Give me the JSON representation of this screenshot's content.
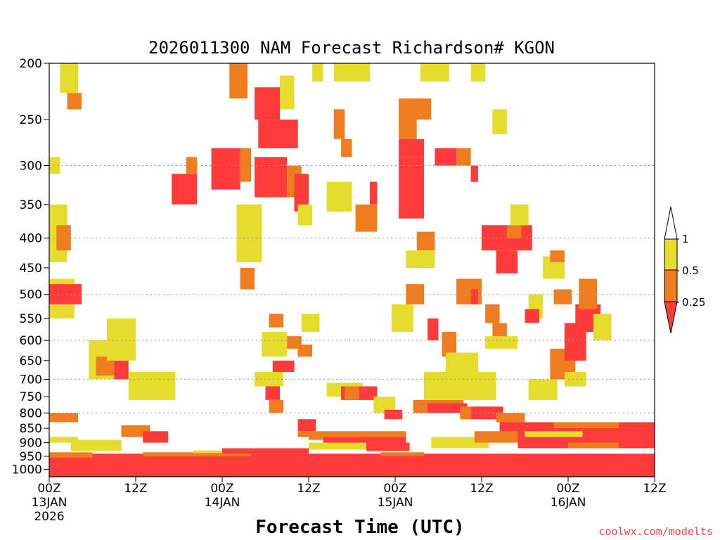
{
  "chart_data": {
    "type": "heatmap",
    "title": "2026011300 NAM Forecast Richardson# KGON",
    "xlabel": "Forecast Time (UTC)",
    "ylabel": "",
    "credit": "coolwx.com/modelts",
    "x_ticks": [
      {
        "hour": 0,
        "label": "00Z",
        "date": "13JAN",
        "year": "2026"
      },
      {
        "hour": 12,
        "label": "12Z",
        "date": "",
        "year": ""
      },
      {
        "hour": 24,
        "label": "00Z",
        "date": "14JAN",
        "year": ""
      },
      {
        "hour": 36,
        "label": "12Z",
        "date": "",
        "year": ""
      },
      {
        "hour": 48,
        "label": "00Z",
        "date": "15JAN",
        "year": ""
      },
      {
        "hour": 60,
        "label": "12Z",
        "date": "",
        "year": ""
      },
      {
        "hour": 72,
        "label": "00Z",
        "date": "16JAN",
        "year": ""
      },
      {
        "hour": 84,
        "label": "12Z",
        "date": "",
        "year": ""
      }
    ],
    "xlim": [
      0,
      84
    ],
    "y_ticks": [
      200,
      250,
      300,
      350,
      400,
      450,
      500,
      550,
      600,
      650,
      700,
      750,
      800,
      850,
      900,
      950,
      1000
    ],
    "ylim": [
      1030,
      200
    ],
    "y_scale": "log",
    "grid_levels": [
      300,
      400,
      500,
      600,
      700,
      800
    ],
    "surface": {
      "pressure_start": 1027,
      "pressure_end": 1030,
      "color": "#8b4513"
    },
    "legend": {
      "placement": "right",
      "entries": [
        {
          "label": "0.25",
          "color": "#ff3a3a",
          "range": "< 0.25"
        },
        {
          "label": "0.5",
          "color": "#f07c20",
          "range": "0.25 - 0.5"
        },
        {
          "label": "1",
          "color": "#e6dc2d",
          "range": "0.5 - 1"
        }
      ],
      "extension_low_color": "#ff3a3a",
      "extension_high_color": "#ffffff"
    },
    "colors": {
      "low": "#ff3a3a",
      "mid": "#f07c20",
      "high": "#e6dc2d"
    },
    "regions": [
      {
        "class": "high",
        "h0": 1.5,
        "h1": 4.0,
        "p0": 200,
        "p1": 225
      },
      {
        "class": "mid",
        "h0": 2.5,
        "h1": 4.5,
        "p0": 225,
        "p1": 240
      },
      {
        "class": "high",
        "h0": 0.0,
        "h1": 1.5,
        "p0": 290,
        "p1": 310
      },
      {
        "class": "high",
        "h0": 0.0,
        "h1": 2.5,
        "p0": 350,
        "p1": 440
      },
      {
        "class": "mid",
        "h0": 1.0,
        "h1": 3.0,
        "p0": 380,
        "p1": 420
      },
      {
        "class": "high",
        "h0": 0.0,
        "h1": 3.5,
        "p0": 470,
        "p1": 550
      },
      {
        "class": "low",
        "h0": 0.0,
        "h1": 4.5,
        "p0": 480,
        "p1": 520
      },
      {
        "class": "high",
        "h0": 5.5,
        "h1": 9.0,
        "p0": 600,
        "p1": 700
      },
      {
        "class": "mid",
        "h0": 6.5,
        "h1": 9.0,
        "p0": 640,
        "p1": 690
      },
      {
        "class": "low",
        "h0": 9.0,
        "h1": 11.0,
        "p0": 650,
        "p1": 700
      },
      {
        "class": "high",
        "h0": 8.0,
        "h1": 12.0,
        "p0": 550,
        "p1": 650
      },
      {
        "class": "high",
        "h0": 11.0,
        "h1": 17.5,
        "p0": 680,
        "p1": 760
      },
      {
        "class": "mid",
        "h0": 10.0,
        "h1": 14.0,
        "p0": 840,
        "p1": 880
      },
      {
        "class": "low",
        "h0": 13.0,
        "h1": 16.5,
        "p0": 860,
        "p1": 900
      },
      {
        "class": "high",
        "h0": 3.0,
        "h1": 10.0,
        "p0": 890,
        "p1": 930
      },
      {
        "class": "mid",
        "h0": 0.0,
        "h1": 4.0,
        "p0": 800,
        "p1": 830
      },
      {
        "class": "mid",
        "h0": 25.0,
        "h1": 27.5,
        "p0": 200,
        "p1": 230
      },
      {
        "class": "low",
        "h0": 28.5,
        "h1": 32.0,
        "p0": 220,
        "p1": 250
      },
      {
        "class": "low",
        "h0": 29.0,
        "h1": 34.5,
        "p0": 250,
        "p1": 280
      },
      {
        "class": "high",
        "h0": 32.0,
        "h1": 34.0,
        "p0": 210,
        "p1": 240
      },
      {
        "class": "low",
        "h0": 22.5,
        "h1": 26.5,
        "p0": 280,
        "p1": 330
      },
      {
        "class": "mid",
        "h0": 26.5,
        "h1": 28.0,
        "p0": 280,
        "p1": 320
      },
      {
        "class": "low",
        "h0": 28.5,
        "h1": 33.0,
        "p0": 290,
        "p1": 340
      },
      {
        "class": "mid",
        "h0": 33.0,
        "h1": 35.0,
        "p0": 300,
        "p1": 340
      },
      {
        "class": "low",
        "h0": 34.0,
        "h1": 36.0,
        "p0": 310,
        "p1": 360
      },
      {
        "class": "low",
        "h0": 17.0,
        "h1": 20.5,
        "p0": 310,
        "p1": 350
      },
      {
        "class": "mid",
        "h0": 19.0,
        "h1": 20.5,
        "p0": 290,
        "p1": 310
      },
      {
        "class": "high",
        "h0": 26.0,
        "h1": 29.5,
        "p0": 350,
        "p1": 440
      },
      {
        "class": "mid",
        "h0": 26.5,
        "h1": 28.5,
        "p0": 450,
        "p1": 490
      },
      {
        "class": "high",
        "h0": 34.5,
        "h1": 36.5,
        "p0": 350,
        "p1": 380
      },
      {
        "class": "high",
        "h0": 38.5,
        "h1": 42.0,
        "p0": 320,
        "p1": 360
      },
      {
        "class": "mid",
        "h0": 42.5,
        "h1": 45.5,
        "p0": 350,
        "p1": 390
      },
      {
        "class": "low",
        "h0": 44.5,
        "h1": 45.5,
        "p0": 320,
        "p1": 350
      },
      {
        "class": "high",
        "h0": 39.5,
        "h1": 44.5,
        "p0": 200,
        "p1": 215
      },
      {
        "class": "high",
        "h0": 36.5,
        "h1": 38.0,
        "p0": 200,
        "p1": 215
      },
      {
        "class": "mid",
        "h0": 39.5,
        "h1": 41.0,
        "p0": 240,
        "p1": 270
      },
      {
        "class": "mid",
        "h0": 40.5,
        "h1": 42.0,
        "p0": 270,
        "p1": 290
      },
      {
        "class": "low",
        "h0": 48.5,
        "h1": 52.0,
        "p0": 270,
        "p1": 290
      },
      {
        "class": "low",
        "h0": 48.5,
        "h1": 52.0,
        "p0": 290,
        "p1": 370
      },
      {
        "class": "mid",
        "h0": 48.5,
        "h1": 51.0,
        "p0": 230,
        "p1": 270
      },
      {
        "class": "mid",
        "h0": 50.5,
        "h1": 53.0,
        "p0": 230,
        "p1": 250
      },
      {
        "class": "high",
        "h0": 51.5,
        "h1": 55.5,
        "p0": 200,
        "p1": 215
      },
      {
        "class": "low",
        "h0": 53.5,
        "h1": 56.5,
        "p0": 280,
        "p1": 300
      },
      {
        "class": "mid",
        "h0": 56.5,
        "h1": 58.5,
        "p0": 280,
        "p1": 300
      },
      {
        "class": "low",
        "h0": 58.5,
        "h1": 59.5,
        "p0": 300,
        "p1": 320
      },
      {
        "class": "high",
        "h0": 61.5,
        "h1": 63.5,
        "p0": 240,
        "p1": 265
      },
      {
        "class": "high",
        "h0": 58.5,
        "h1": 60.5,
        "p0": 200,
        "p1": 215
      },
      {
        "class": "mid",
        "h0": 51.0,
        "h1": 53.5,
        "p0": 390,
        "p1": 420
      },
      {
        "class": "high",
        "h0": 49.5,
        "h1": 53.5,
        "p0": 420,
        "p1": 450
      },
      {
        "class": "mid",
        "h0": 49.5,
        "h1": 52.0,
        "p0": 480,
        "p1": 520
      },
      {
        "class": "high",
        "h0": 47.5,
        "h1": 50.5,
        "p0": 520,
        "p1": 580
      },
      {
        "class": "low",
        "h0": 52.5,
        "h1": 54.0,
        "p0": 550,
        "p1": 600
      },
      {
        "class": "mid",
        "h0": 54.5,
        "h1": 56.5,
        "p0": 580,
        "p1": 640
      },
      {
        "class": "high",
        "h0": 55.0,
        "h1": 59.5,
        "p0": 630,
        "p1": 690
      },
      {
        "class": "mid",
        "h0": 56.5,
        "h1": 60.0,
        "p0": 470,
        "p1": 520
      },
      {
        "class": "low",
        "h0": 58.5,
        "h1": 59.5,
        "p0": 490,
        "p1": 520
      },
      {
        "class": "mid",
        "h0": 60.5,
        "h1": 62.5,
        "p0": 520,
        "p1": 560
      },
      {
        "class": "low",
        "h0": 60.0,
        "h1": 67.0,
        "p0": 380,
        "p1": 420
      },
      {
        "class": "low",
        "h0": 62.0,
        "h1": 65.0,
        "p0": 420,
        "p1": 460
      },
      {
        "class": "mid",
        "h0": 63.5,
        "h1": 65.5,
        "p0": 380,
        "p1": 400
      },
      {
        "class": "high",
        "h0": 64.0,
        "h1": 66.5,
        "p0": 350,
        "p1": 380
      },
      {
        "class": "high",
        "h0": 66.5,
        "h1": 68.5,
        "p0": 500,
        "p1": 550
      },
      {
        "class": "low",
        "h0": 66.0,
        "h1": 68.0,
        "p0": 530,
        "p1": 560
      },
      {
        "class": "mid",
        "h0": 61.5,
        "h1": 63.5,
        "p0": 560,
        "p1": 600
      },
      {
        "class": "high",
        "h0": 60.5,
        "h1": 65.0,
        "p0": 590,
        "p1": 620
      },
      {
        "class": "mid",
        "h0": 69.5,
        "h1": 73.0,
        "p0": 620,
        "p1": 700
      },
      {
        "class": "low",
        "h0": 71.5,
        "h1": 74.5,
        "p0": 560,
        "p1": 650
      },
      {
        "class": "low",
        "h0": 73.0,
        "h1": 76.5,
        "p0": 520,
        "p1": 580
      },
      {
        "class": "high",
        "h0": 75.5,
        "h1": 78.0,
        "p0": 540,
        "p1": 600
      },
      {
        "class": "mid",
        "h0": 73.5,
        "h1": 76.0,
        "p0": 470,
        "p1": 530
      },
      {
        "class": "high",
        "h0": 71.5,
        "h1": 74.5,
        "p0": 680,
        "p1": 720
      },
      {
        "class": "high",
        "h0": 66.5,
        "h1": 70.5,
        "p0": 700,
        "p1": 760
      },
      {
        "class": "mid",
        "h0": 70.0,
        "h1": 72.5,
        "p0": 490,
        "p1": 520
      },
      {
        "class": "high",
        "h0": 68.5,
        "h1": 71.5,
        "p0": 430,
        "p1": 470
      },
      {
        "class": "mid",
        "h0": 69.5,
        "h1": 71.5,
        "p0": 420,
        "p1": 440
      },
      {
        "class": "high",
        "h0": 35.0,
        "h1": 37.5,
        "p0": 540,
        "p1": 580
      },
      {
        "class": "mid",
        "h0": 30.5,
        "h1": 32.5,
        "p0": 540,
        "p1": 570
      },
      {
        "class": "high",
        "h0": 29.5,
        "h1": 33.0,
        "p0": 580,
        "p1": 640
      },
      {
        "class": "mid",
        "h0": 33.0,
        "h1": 35.0,
        "p0": 590,
        "p1": 620
      },
      {
        "class": "mid",
        "h0": 34.5,
        "h1": 36.5,
        "p0": 610,
        "p1": 640
      },
      {
        "class": "low",
        "h0": 31.0,
        "h1": 34.0,
        "p0": 650,
        "p1": 680
      },
      {
        "class": "high",
        "h0": 28.5,
        "h1": 32.5,
        "p0": 680,
        "p1": 720
      },
      {
        "class": "low",
        "h0": 30.0,
        "h1": 32.0,
        "p0": 720,
        "p1": 760
      },
      {
        "class": "mid",
        "h0": 30.5,
        "h1": 32.5,
        "p0": 760,
        "p1": 800
      },
      {
        "class": "low",
        "h0": 34.5,
        "h1": 37.0,
        "p0": 820,
        "p1": 860
      },
      {
        "class": "mid",
        "h0": 34.5,
        "h1": 36.0,
        "p0": 860,
        "p1": 880
      },
      {
        "class": "high",
        "h0": 38.5,
        "h1": 43.5,
        "p0": 710,
        "p1": 750
      },
      {
        "class": "low",
        "h0": 40.5,
        "h1": 45.5,
        "p0": 720,
        "p1": 760
      },
      {
        "class": "mid",
        "h0": 41.0,
        "h1": 43.0,
        "p0": 720,
        "p1": 760
      },
      {
        "class": "high",
        "h0": 45.0,
        "h1": 48.0,
        "p0": 750,
        "p1": 800
      },
      {
        "class": "low",
        "h0": 46.5,
        "h1": 49.0,
        "p0": 790,
        "p1": 820
      },
      {
        "class": "mid",
        "h0": 36.0,
        "h1": 49.5,
        "p0": 860,
        "p1": 890
      },
      {
        "class": "low",
        "h0": 38.0,
        "h1": 49.5,
        "p0": 880,
        "p1": 910
      },
      {
        "class": "high",
        "h0": 36.0,
        "h1": 48.5,
        "p0": 900,
        "p1": 925
      },
      {
        "class": "low",
        "h0": 44.0,
        "h1": 50.0,
        "p0": 900,
        "p1": 930
      },
      {
        "class": "mid",
        "h0": 50.5,
        "h1": 57.5,
        "p0": 760,
        "p1": 800
      },
      {
        "class": "low",
        "h0": 52.5,
        "h1": 58.0,
        "p0": 770,
        "p1": 800
      },
      {
        "class": "high",
        "h0": 52.0,
        "h1": 62.0,
        "p0": 680,
        "p1": 760
      },
      {
        "class": "mid",
        "h0": 57.0,
        "h1": 62.0,
        "p0": 780,
        "p1": 820
      },
      {
        "class": "low",
        "h0": 58.5,
        "h1": 63.0,
        "p0": 780,
        "p1": 820
      },
      {
        "class": "mid",
        "h0": 62.0,
        "h1": 66.0,
        "p0": 800,
        "p1": 830
      },
      {
        "class": "low",
        "h0": 62.5,
        "h1": 66.0,
        "p0": 830,
        "p1": 870
      },
      {
        "class": "high",
        "h0": 53.0,
        "h1": 61.0,
        "p0": 880,
        "p1": 920
      },
      {
        "class": "mid",
        "h0": 59.0,
        "h1": 66.0,
        "p0": 860,
        "p1": 900
      },
      {
        "class": "low",
        "h0": 65.0,
        "h1": 84.0,
        "p0": 830,
        "p1": 870
      },
      {
        "class": "mid",
        "h0": 70.0,
        "h1": 79.0,
        "p0": 830,
        "p1": 850
      },
      {
        "class": "low",
        "h0": 65.0,
        "h1": 84.0,
        "p0": 870,
        "p1": 920
      },
      {
        "class": "high",
        "h0": 66.0,
        "h1": 74.0,
        "p0": 860,
        "p1": 880
      },
      {
        "class": "mid",
        "h0": 72.0,
        "h1": 79.0,
        "p0": 900,
        "p1": 920
      },
      {
        "class": "low",
        "h0": 0.0,
        "h1": 84.0,
        "p0": 940,
        "p1": 1027
      },
      {
        "class": "mid",
        "h0": 0.0,
        "h1": 6.0,
        "p0": 935,
        "p1": 955
      },
      {
        "class": "mid",
        "h0": 13.0,
        "h1": 28.0,
        "p0": 935,
        "p1": 950
      },
      {
        "class": "mid",
        "h0": 46.0,
        "h1": 52.0,
        "p0": 935,
        "p1": 948
      },
      {
        "class": "high",
        "h0": 20.0,
        "h1": 30.0,
        "p0": 928,
        "p1": 938
      },
      {
        "class": "low",
        "h0": 24.0,
        "h1": 36.0,
        "p0": 920,
        "p1": 940
      },
      {
        "class": "high",
        "h0": 0.0,
        "h1": 4.0,
        "p0": 880,
        "p1": 900
      }
    ]
  }
}
